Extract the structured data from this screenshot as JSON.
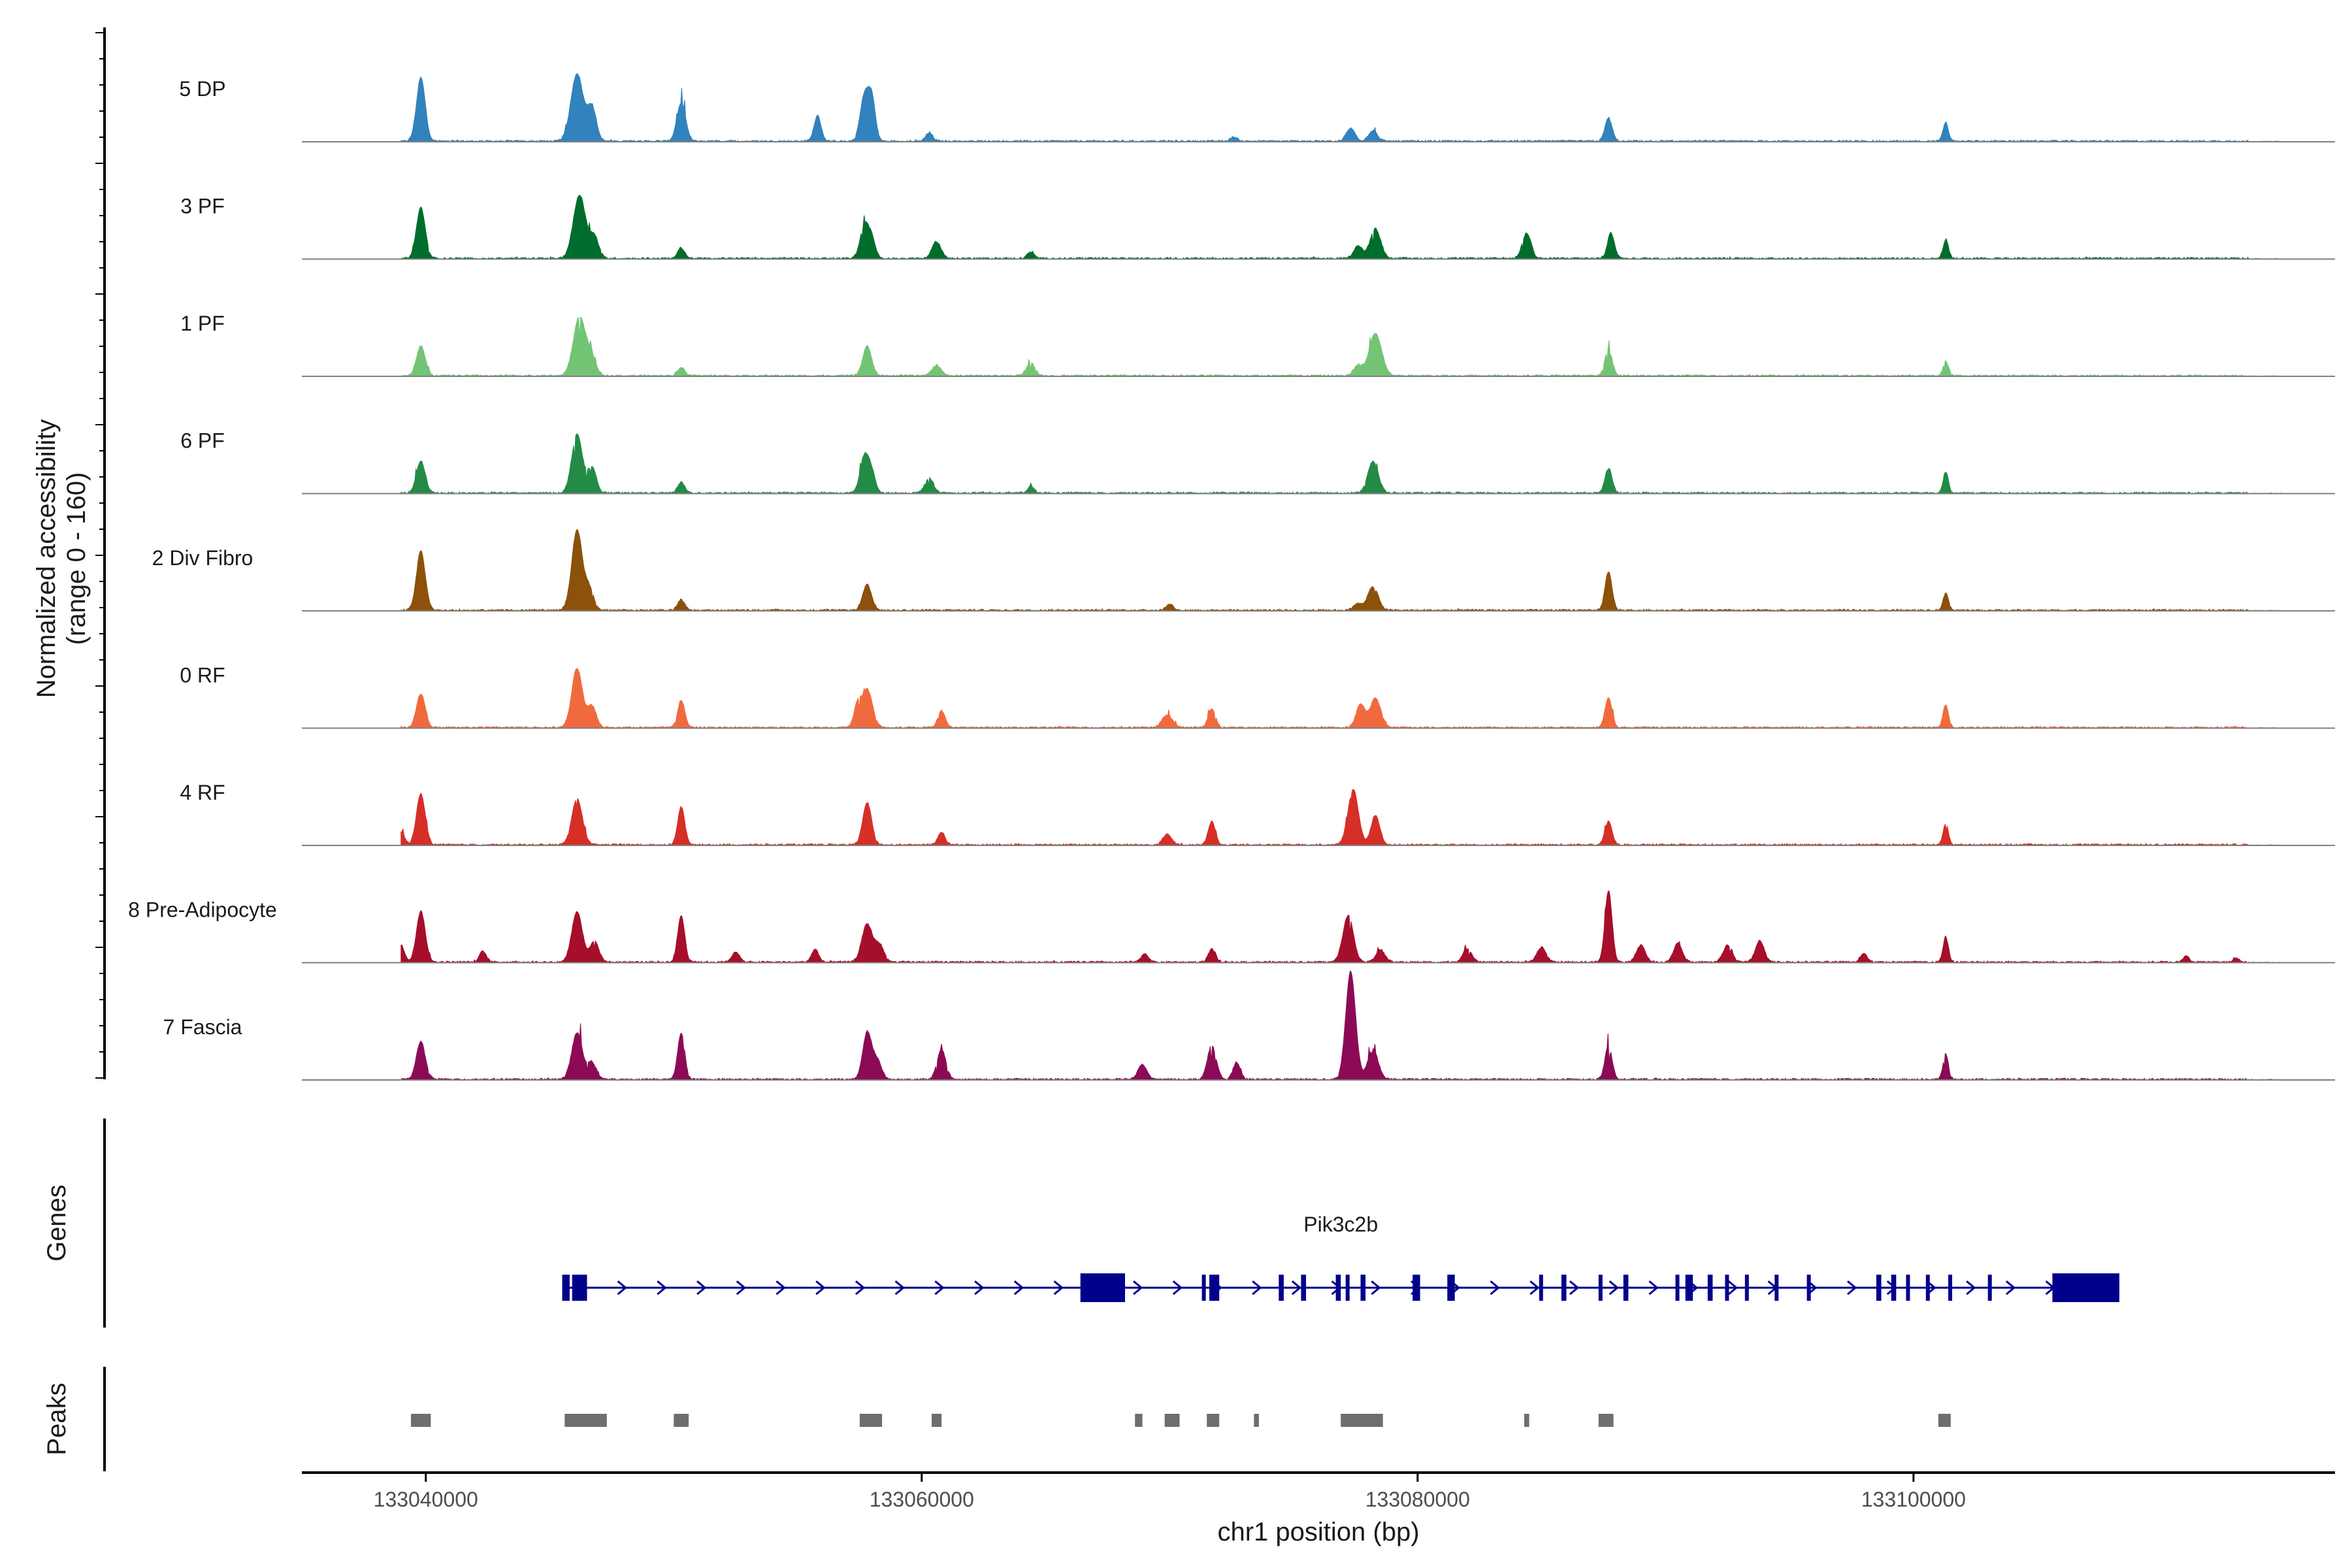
{
  "chart_data": {
    "type": "area",
    "title": "",
    "ylabel_line1": "Normalized accessibility",
    "ylabel_line2": "(range 0 - 160)",
    "ylim": [
      0,
      160
    ],
    "xlabel": "chr1 position (bp)",
    "xlim": [
      133035000,
      133117000
    ],
    "xticks": [
      133040000,
      133060000,
      133080000,
      133100000
    ],
    "xtick_labels": [
      "133040000",
      "133060000",
      "133080000",
      "133100000"
    ],
    "tracks": [
      {
        "name": "5 DP",
        "color": "#3182bd",
        "peaks": [
          [
            133039800,
            150,
            250
          ],
          [
            133046100,
            160,
            350
          ],
          [
            133046700,
            80,
            250
          ],
          [
            133050300,
            90,
            250
          ],
          [
            133055800,
            60,
            200
          ],
          [
            133057700,
            110,
            250
          ],
          [
            133058000,
            90,
            200
          ],
          [
            133060300,
            20,
            200
          ],
          [
            133072600,
            10,
            200
          ],
          [
            133077300,
            30,
            250
          ],
          [
            133078200,
            25,
            250
          ],
          [
            133087700,
            55,
            200
          ],
          [
            133101300,
            45,
            150
          ]
        ]
      },
      {
        "name": "3 PF",
        "color": "#006d2c",
        "peaks": [
          [
            133039800,
            120,
            250
          ],
          [
            133046200,
            150,
            350
          ],
          [
            133046800,
            50,
            250
          ],
          [
            133050300,
            25,
            200
          ],
          [
            133057700,
            80,
            250
          ],
          [
            133058000,
            40,
            200
          ],
          [
            133060600,
            40,
            250
          ],
          [
            133064400,
            15,
            200
          ],
          [
            133078300,
            70,
            300
          ],
          [
            133077600,
            30,
            250
          ],
          [
            133084400,
            60,
            250
          ],
          [
            133087800,
            60,
            200
          ],
          [
            133101300,
            45,
            150
          ]
        ]
      },
      {
        "name": "1 PF",
        "color": "#74c476",
        "peaks": [
          [
            133039800,
            70,
            250
          ],
          [
            133046200,
            140,
            350
          ],
          [
            133046700,
            40,
            250
          ],
          [
            133050300,
            20,
            200
          ],
          [
            133057800,
            70,
            250
          ],
          [
            133060600,
            25,
            250
          ],
          [
            133064400,
            30,
            250
          ],
          [
            133077600,
            25,
            250
          ],
          [
            133078300,
            100,
            350
          ],
          [
            133087700,
            65,
            200
          ],
          [
            133101300,
            35,
            150
          ]
        ]
      },
      {
        "name": "6 PF",
        "color": "#238b45",
        "peaks": [
          [
            133039800,
            75,
            250
          ],
          [
            133046100,
            140,
            300
          ],
          [
            133046700,
            60,
            250
          ],
          [
            133050300,
            25,
            200
          ],
          [
            133057700,
            90,
            250
          ],
          [
            133058000,
            40,
            200
          ],
          [
            133060300,
            35,
            250
          ],
          [
            133064400,
            15,
            200
          ],
          [
            133078200,
            75,
            300
          ],
          [
            133087700,
            60,
            200
          ],
          [
            133101300,
            50,
            150
          ]
        ]
      },
      {
        "name": "2 Div Fibro",
        "color": "#8c510a",
        "peaks": [
          [
            133039800,
            140,
            250
          ],
          [
            133046100,
            190,
            300
          ],
          [
            133046600,
            50,
            250
          ],
          [
            133050300,
            25,
            200
          ],
          [
            133057800,
            60,
            250
          ],
          [
            133070000,
            15,
            200
          ],
          [
            133077600,
            15,
            250
          ],
          [
            133078200,
            55,
            300
          ],
          [
            133087700,
            90,
            200
          ],
          [
            133101300,
            40,
            150
          ]
        ]
      },
      {
        "name": "0 RF",
        "color": "#f16a3d",
        "peaks": [
          [
            133039800,
            80,
            250
          ],
          [
            133046100,
            140,
            300
          ],
          [
            133046700,
            50,
            250
          ],
          [
            133050300,
            65,
            200
          ],
          [
            133057800,
            90,
            300
          ],
          [
            133057400,
            50,
            200
          ],
          [
            133060800,
            40,
            200
          ],
          [
            133069900,
            30,
            300
          ],
          [
            133071700,
            45,
            200
          ],
          [
            133077700,
            55,
            250
          ],
          [
            133078300,
            70,
            300
          ],
          [
            133087700,
            70,
            200
          ],
          [
            133101300,
            55,
            150
          ]
        ]
      },
      {
        "name": "4 RF",
        "color": "#d62f27",
        "peaks": [
          [
            133039000,
            30,
            200
          ],
          [
            133039800,
            120,
            250
          ],
          [
            133046100,
            110,
            300
          ],
          [
            133050300,
            90,
            200
          ],
          [
            133057800,
            100,
            250
          ],
          [
            133060800,
            30,
            200
          ],
          [
            133069900,
            25,
            250
          ],
          [
            133071700,
            55,
            200
          ],
          [
            133077400,
            130,
            300
          ],
          [
            133078300,
            70,
            250
          ],
          [
            133087700,
            55,
            200
          ],
          [
            133101300,
            50,
            150
          ]
        ]
      },
      {
        "name": "8 Pre-Adipocyte",
        "color": "#a50f2b",
        "peaks": [
          [
            133039000,
            40,
            200
          ],
          [
            133039800,
            120,
            250
          ],
          [
            133042300,
            25,
            200
          ],
          [
            133046100,
            120,
            300
          ],
          [
            133046800,
            50,
            250
          ],
          [
            133050300,
            110,
            200
          ],
          [
            133052500,
            25,
            200
          ],
          [
            133055700,
            30,
            200
          ],
          [
            133057800,
            90,
            300
          ],
          [
            133058300,
            40,
            250
          ],
          [
            133069000,
            20,
            200
          ],
          [
            133071700,
            30,
            200
          ],
          [
            133077200,
            110,
            300
          ],
          [
            133078500,
            30,
            250
          ],
          [
            133082000,
            30,
            250
          ],
          [
            133085000,
            35,
            250
          ],
          [
            133087700,
            170,
            200
          ],
          [
            133089000,
            40,
            250
          ],
          [
            133090500,
            45,
            250
          ],
          [
            133092500,
            40,
            250
          ],
          [
            133093800,
            50,
            250
          ],
          [
            133101300,
            60,
            150
          ],
          [
            133098000,
            20,
            200
          ],
          [
            133111000,
            15,
            150
          ],
          [
            133113000,
            10,
            150
          ]
        ]
      },
      {
        "name": "7 Fascia",
        "color": "#8c0a55",
        "peaks": [
          [
            133039800,
            90,
            250
          ],
          [
            133046100,
            110,
            300
          ],
          [
            133046700,
            40,
            250
          ],
          [
            133050300,
            110,
            200
          ],
          [
            133057800,
            110,
            250
          ],
          [
            133058200,
            45,
            250
          ],
          [
            133060800,
            70,
            250
          ],
          [
            133068900,
            35,
            250
          ],
          [
            133071700,
            80,
            250
          ],
          [
            133072700,
            40,
            200
          ],
          [
            133077300,
            255,
            280
          ],
          [
            133078200,
            70,
            300
          ],
          [
            133087700,
            80,
            200
          ],
          [
            133101300,
            60,
            150
          ]
        ]
      }
    ],
    "genes": [
      {
        "name": "Pik3c2b",
        "color": "#00008b",
        "start": 133045500,
        "end": 133108300,
        "strand": "+",
        "exons": [
          [
            133045500,
            133045800
          ],
          [
            133045900,
            133046500
          ],
          [
            133066400,
            133068200
          ],
          [
            133071300,
            133071400
          ],
          [
            133071600,
            133072000
          ],
          [
            133074400,
            133074600
          ],
          [
            133075300,
            133075500
          ],
          [
            133076700,
            133076900
          ],
          [
            133077100,
            133077200
          ],
          [
            133077700,
            133077900
          ],
          [
            133079800,
            133080100
          ],
          [
            133081200,
            133081500
          ],
          [
            133084900,
            133085000
          ],
          [
            133085800,
            133086000
          ],
          [
            133087300,
            133087400
          ],
          [
            133088300,
            133088500
          ],
          [
            133090400,
            133090500
          ],
          [
            133090800,
            133091100
          ],
          [
            133091700,
            133091900
          ],
          [
            133092400,
            133092500
          ],
          [
            133093200,
            133093300
          ],
          [
            133094400,
            133094500
          ],
          [
            133095700,
            133095800
          ],
          [
            133098500,
            133098700
          ],
          [
            133099100,
            133099300
          ],
          [
            133099700,
            133099800
          ],
          [
            133100500,
            133100600
          ],
          [
            133101400,
            133101500
          ],
          [
            133103000,
            133103100
          ],
          [
            133105600,
            133108300
          ]
        ]
      }
    ],
    "peak_regions": [
      [
        133039400,
        133040200
      ],
      [
        133045600,
        133047300
      ],
      [
        133050000,
        133050600
      ],
      [
        133057500,
        133058400
      ],
      [
        133060400,
        133060800
      ],
      [
        133068600,
        133068900
      ],
      [
        133069800,
        133070400
      ],
      [
        133071500,
        133072000
      ],
      [
        133073400,
        133073600
      ],
      [
        133076900,
        133078600
      ],
      [
        133084300,
        133084500
      ],
      [
        133087300,
        133087900
      ],
      [
        133101000,
        133101500
      ]
    ],
    "panel_labels": [
      "Genes",
      "Peaks"
    ]
  }
}
